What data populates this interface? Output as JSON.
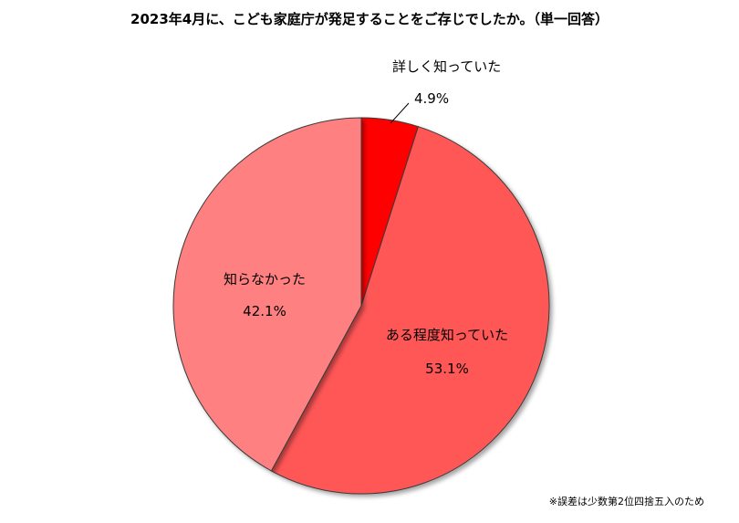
{
  "chart_data": {
    "type": "pie",
    "title": "2023年4月に、こども家庭庁が発足することをご存じでしたか。（単一回答）",
    "slices": [
      {
        "label": "詳しく知っていた",
        "value": 4.9,
        "value_label": "4.9%",
        "color": "#ff0000"
      },
      {
        "label": "ある程度知っていた",
        "value": 53.1,
        "value_label": "53.1%",
        "color": "#ff5757"
      },
      {
        "label": "知らなかった",
        "value": 42.1,
        "value_label": "42.1%",
        "color": "#ff8080"
      }
    ],
    "start_angle": "12 o'clock",
    "direction": "clockwise",
    "footnote": "※誤差は少数第2位四捨五入のため"
  }
}
